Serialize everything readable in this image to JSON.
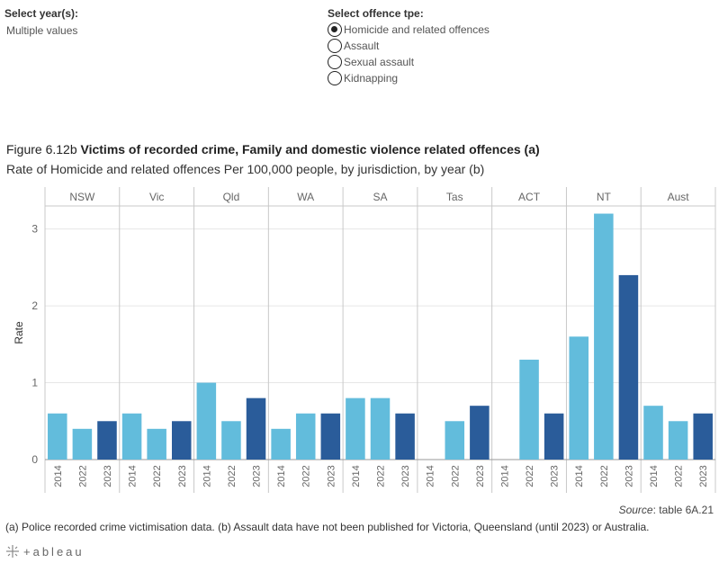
{
  "filters": {
    "year": {
      "label": "Select year(s):",
      "value": "Multiple values"
    },
    "offence": {
      "label": "Select offence tpe:",
      "options": [
        {
          "label": "Homicide and related offences",
          "selected": true
        },
        {
          "label": "Assault",
          "selected": false
        },
        {
          "label": "Sexual assault",
          "selected": false
        },
        {
          "label": "Kidnapping",
          "selected": false
        }
      ]
    }
  },
  "figure": {
    "number": "Figure 6.12b",
    "title": "Victims of recorded crime, Family and domestic violence related offences (a)",
    "subtitle": "Rate of Homicide and related offences Per 100,000 people, by jurisdiction, by year (b)"
  },
  "source": {
    "label": "Source",
    "text": ": table 6A.21"
  },
  "footnote": "(a) Police recorded crime victimisation data. (b) Assault data have not been published for Victoria, Queensland (until 2023) or Australia.",
  "brand": "+ableau",
  "colors": {
    "light": "#62bcdc",
    "dark": "#2a5c9a",
    "grid": "#e6e6e6",
    "divider": "#c8c8c8"
  },
  "chart_data": {
    "type": "bar",
    "ylabel": "Rate",
    "ylim": [
      0,
      3.3
    ],
    "yticks": [
      0,
      1,
      2,
      3
    ],
    "years": [
      "2014",
      "2022",
      "2023"
    ],
    "grid": true,
    "panels": [
      {
        "name": "NSW",
        "values": [
          0.6,
          0.4,
          0.5
        ]
      },
      {
        "name": "Vic",
        "values": [
          0.6,
          0.4,
          0.5
        ]
      },
      {
        "name": "Qld",
        "values": [
          1.0,
          0.5,
          0.8
        ]
      },
      {
        "name": "WA",
        "values": [
          0.4,
          0.6,
          0.6
        ]
      },
      {
        "name": "SA",
        "values": [
          0.8,
          0.8,
          0.6
        ]
      },
      {
        "name": "Tas",
        "values": [
          null,
          0.5,
          0.7
        ]
      },
      {
        "name": "ACT",
        "values": [
          null,
          1.3,
          0.6
        ]
      },
      {
        "name": "NT",
        "values": [
          1.6,
          3.2,
          2.4
        ]
      },
      {
        "name": "Aust",
        "values": [
          0.7,
          0.5,
          0.6
        ]
      }
    ]
  }
}
